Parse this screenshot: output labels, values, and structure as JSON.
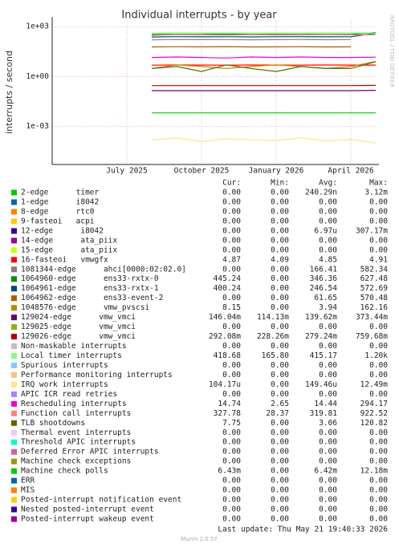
{
  "chart_data": {
    "type": "line",
    "title": "Individual interrupts - by year",
    "y_label": "interrupts / second",
    "watermark": "RRDTOOL / TOBI OETIKER",
    "yscale": "log",
    "grid": true,
    "ylim": [
      5e-06,
      2500
    ],
    "yticks": [
      {
        "value": 1000,
        "label": "1e+03"
      },
      {
        "value": 1,
        "label": "1e+00"
      },
      {
        "value": 0.001,
        "label": "1e-03"
      }
    ],
    "xlim": [
      "2025-04",
      "2026-05"
    ],
    "xticks": [
      {
        "value": "2025-07",
        "label": "July 2025"
      },
      {
        "value": "2025-10",
        "label": "October 2025"
      },
      {
        "value": "2026-01",
        "label": "January 2026"
      },
      {
        "value": "2026-04",
        "label": "April 2026"
      }
    ],
    "x": [
      "2025-08",
      "2025-09",
      "2025-10",
      "2025-11",
      "2025-12",
      "2026-01",
      "2026-02",
      "2026-03",
      "2026-04",
      "2026-05"
    ],
    "legend_headers": [
      "Cur:",
      "Min:",
      "Avg:",
      "Max:"
    ],
    "series": [
      {
        "name": "2-edge      timer",
        "color": "#00CC00",
        "cur": "0.00",
        "min": "0.00",
        "avg": "240.29n",
        "max": "3.12m"
      },
      {
        "name": "1-edge      i8042",
        "color": "#0066B3",
        "cur": "0.00",
        "min": "0.00",
        "avg": "0.00",
        "max": "0.00"
      },
      {
        "name": "8-edge      rtc0",
        "color": "#FF8000",
        "cur": "0.00",
        "min": "0.00",
        "avg": "0.00",
        "max": "0.00"
      },
      {
        "name": "9-fasteoi   acpi",
        "color": "#FFCC00",
        "cur": "0.00",
        "min": "0.00",
        "avg": "0.00",
        "max": "0.00"
      },
      {
        "name": "12-edge      i8042",
        "color": "#330099",
        "cur": "0.00",
        "min": "0.00",
        "avg": "6.97u",
        "max": "307.17m"
      },
      {
        "name": "14-edge      ata_piix",
        "color": "#990099",
        "cur": "0.00",
        "min": "0.00",
        "avg": "0.00",
        "max": "0.00"
      },
      {
        "name": "15-edge      ata_piix",
        "color": "#CCFF00",
        "cur": "0.00",
        "min": "0.00",
        "avg": "0.00",
        "max": "0.00"
      },
      {
        "name": "16-fasteoi   vmwgfx",
        "color": "#FF0000",
        "cur": "4.87",
        "min": "4.09",
        "avg": "4.85",
        "max": "4.91",
        "values": [
          4.8,
          4.9,
          4.85,
          4.8,
          4.9,
          4.85,
          4.8,
          4.9,
          4.85,
          4.87
        ]
      },
      {
        "name": "1081344-edge      ahci[0000:02:02.0]",
        "color": "#808080",
        "cur": "0.00",
        "min": "0.00",
        "avg": "166.41",
        "max": "582.34",
        "values": [
          160,
          170,
          165,
          168,
          162,
          166,
          170,
          164,
          168,
          null
        ]
      },
      {
        "name": "1064960-edge      ens33-rxtx-0",
        "color": "#008F00",
        "cur": "445.24",
        "min": "0.00",
        "avg": "346.36",
        "max": "627.48",
        "values": [
          340,
          350,
          345,
          355,
          340,
          350,
          345,
          350,
          340,
          445
        ]
      },
      {
        "name": "1064961-edge      ens33-rxtx-1",
        "color": "#00487D",
        "cur": "400.24",
        "min": "0.00",
        "avg": "246.54",
        "max": "572.69",
        "values": [
          240,
          250,
          245,
          248,
          242,
          246,
          250,
          244,
          248,
          400
        ]
      },
      {
        "name": "1064962-edge      ens33-event-2",
        "color": "#B35A00",
        "cur": "0.00",
        "min": "0.00",
        "avg": "61.65",
        "max": "570.48",
        "values": [
          60,
          62,
          61,
          63,
          60,
          61,
          62,
          60,
          61,
          null
        ]
      },
      {
        "name": "1048576-edge      vmw_pvscsi",
        "color": "#B38F00",
        "cur": "8.15",
        "min": "0.00",
        "avg": "3.94",
        "max": "162.16",
        "values": [
          3,
          5,
          4,
          3,
          4,
          5,
          4,
          3,
          4,
          8
        ]
      },
      {
        "name": "129024-edge      vmw_vmci",
        "color": "#6B006B",
        "cur": "146.04m",
        "min": "114.13m",
        "avg": "139.62m",
        "max": "373.44m",
        "values": [
          0.14,
          0.14,
          0.14,
          0.14,
          0.14,
          0.14,
          0.14,
          0.14,
          0.14,
          0.146
        ]
      },
      {
        "name": "129025-edge      vmw_vmci",
        "color": "#8FB300",
        "cur": "0.00",
        "min": "0.00",
        "avg": "0.00",
        "max": "0.00"
      },
      {
        "name": "129026-edge      vmw_vmci",
        "color": "#B30000",
        "cur": "292.08m",
        "min": "228.26m",
        "avg": "279.24m",
        "max": "759.68m",
        "values": [
          0.28,
          0.28,
          0.28,
          0.28,
          0.28,
          0.28,
          0.28,
          0.28,
          0.28,
          0.292
        ]
      },
      {
        "name": "Non-maskable interrupts",
        "color": "#BEBEBE",
        "cur": "0.00",
        "min": "0.00",
        "avg": "0.00",
        "max": "0.00"
      },
      {
        "name": "Local timer interrupts",
        "color": "#80FF80",
        "cur": "418.68",
        "min": "165.80",
        "avg": "415.17",
        "max": "1.20k",
        "values": [
          410,
          420,
          415,
          418,
          412,
          416,
          414,
          420,
          415,
          419
        ]
      },
      {
        "name": "Spurious interrupts",
        "color": "#80C9FF",
        "cur": "0.00",
        "min": "0.00",
        "avg": "0.00",
        "max": "0.00"
      },
      {
        "name": "Performance monitoring interrupts",
        "color": "#FFC080",
        "cur": "0.00",
        "min": "0.00",
        "avg": "0.00",
        "max": "0.00"
      },
      {
        "name": "IRQ work interrupts",
        "color": "#FFE680",
        "cur": "104.17u",
        "min": "0.00",
        "avg": "149.46u",
        "max": "12.49m",
        "values": [
          0.00015,
          0.0002,
          0.00012,
          0.00018,
          0.00015,
          0.00014,
          0.0002,
          0.00013,
          0.00016,
          0.0001
        ]
      },
      {
        "name": "APIC ICR read retries",
        "color": "#AA80FF",
        "cur": "0.00",
        "min": "0.00",
        "avg": "0.00",
        "max": "0.00"
      },
      {
        "name": "Rescheduling interrupts",
        "color": "#EE00CC",
        "cur": "14.74",
        "min": "2.65",
        "avg": "14.44",
        "max": "294.17",
        "values": [
          14,
          15,
          14,
          13,
          15,
          14,
          15,
          14,
          14,
          14.7
        ]
      },
      {
        "name": "Function call interrupts",
        "color": "#FF8080",
        "cur": "327.78",
        "min": "28.37",
        "avg": "319.81",
        "max": "922.52",
        "values": [
          300,
          330,
          320,
          310,
          325,
          315,
          320,
          330,
          318,
          328
        ]
      },
      {
        "name": "TLB shootdowns",
        "color": "#666600",
        "cur": "7.75",
        "min": "0.00",
        "avg": "3.06",
        "max": "120.82",
        "values": [
          3,
          4,
          2,
          5,
          3,
          2,
          4,
          3,
          3,
          7.75
        ]
      },
      {
        "name": "Thermal event interrupts",
        "color": "#FFBFFF",
        "cur": "0.00",
        "min": "0.00",
        "avg": "0.00",
        "max": "0.00"
      },
      {
        "name": "Threshold APIC interrupts",
        "color": "#00FFCC",
        "cur": "0.00",
        "min": "0.00",
        "avg": "0.00",
        "max": "0.00"
      },
      {
        "name": "Deferred Error APIC interrupts",
        "color": "#CC6699",
        "cur": "0.00",
        "min": "0.00",
        "avg": "0.00",
        "max": "0.00"
      },
      {
        "name": "Machine check exceptions",
        "color": "#999900",
        "cur": "0.00",
        "min": "0.00",
        "avg": "0.00",
        "max": "0.00"
      },
      {
        "name": "Machine check polls",
        "color": "#00CC00",
        "cur": "6.43m",
        "min": "0.00",
        "avg": "6.42m",
        "max": "12.18m",
        "values": [
          0.0064,
          0.0064,
          0.0064,
          0.0064,
          0.0064,
          0.0064,
          0.0064,
          0.0064,
          0.0064,
          0.0064
        ]
      },
      {
        "name": "ERR",
        "color": "#0066B3",
        "cur": "0.00",
        "min": "0.00",
        "avg": "0.00",
        "max": "0.00"
      },
      {
        "name": "MIS",
        "color": "#FF8000",
        "cur": "0.00",
        "min": "0.00",
        "avg": "0.00",
        "max": "0.00"
      },
      {
        "name": "Posted-interrupt notification event",
        "color": "#FFCC00",
        "cur": "0.00",
        "min": "0.00",
        "avg": "0.00",
        "max": "0.00"
      },
      {
        "name": "Nested posted-interrupt event",
        "color": "#330099",
        "cur": "0.00",
        "min": "0.00",
        "avg": "0.00",
        "max": "0.00"
      },
      {
        "name": "Posted-interrupt wakeup event",
        "color": "#990099",
        "cur": "0.00",
        "min": "0.00",
        "avg": "0.00",
        "max": "0.00"
      }
    ],
    "last_update": "Last update: Thu May 21 19:40:33 2026",
    "version": "Munin 2.0.57"
  }
}
